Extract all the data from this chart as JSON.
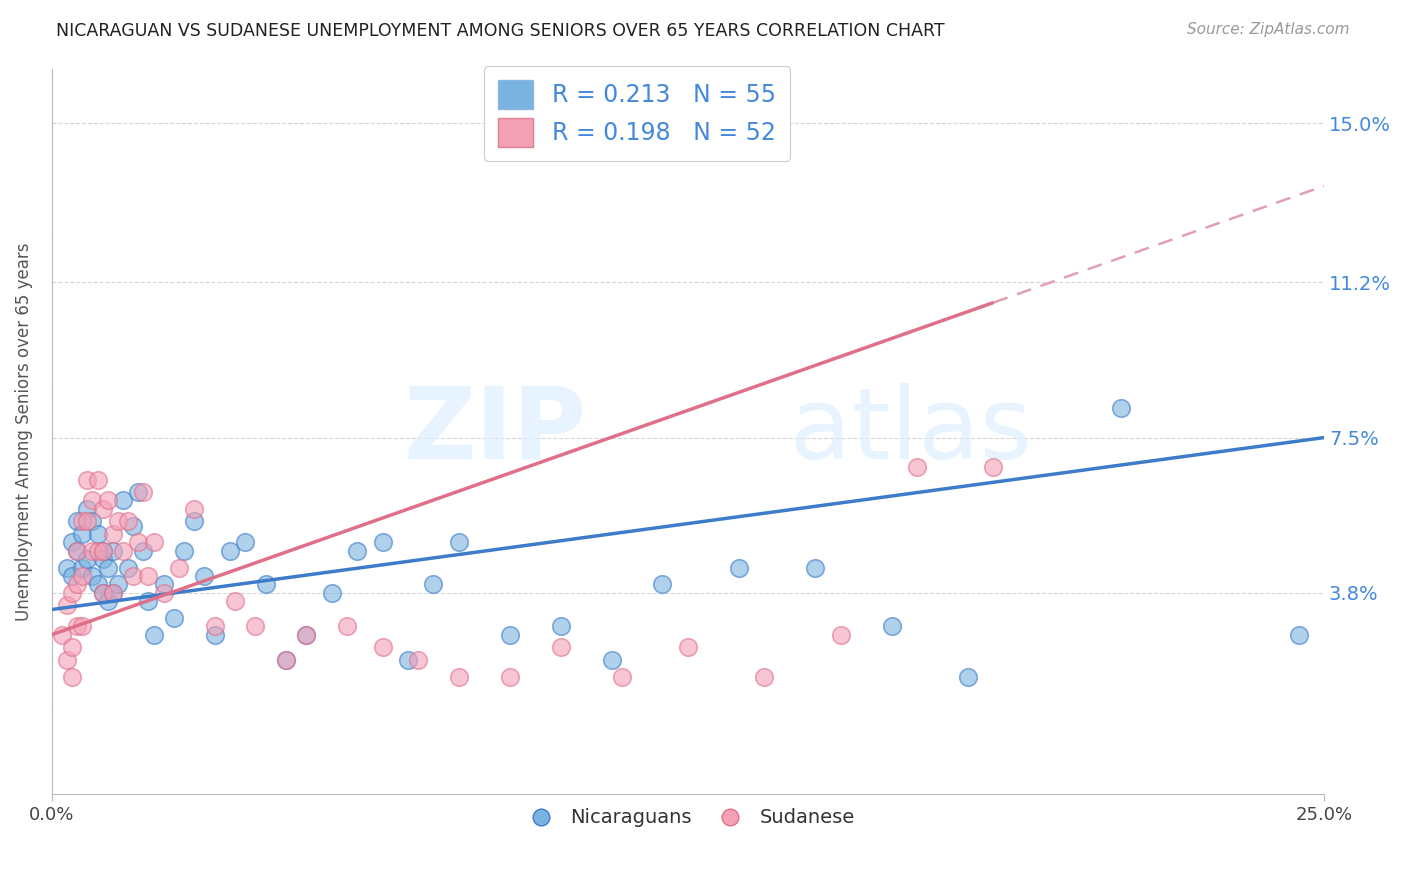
{
  "title": "NICARAGUAN VS SUDANESE UNEMPLOYMENT AMONG SENIORS OVER 65 YEARS CORRELATION CHART",
  "source": "Source: ZipAtlas.com",
  "ylabel": "Unemployment Among Seniors over 65 years",
  "xlim": [
    0.0,
    0.25
  ],
  "ylim": [
    -0.01,
    0.163
  ],
  "ytick_labels": [
    "3.8%",
    "7.5%",
    "11.2%",
    "15.0%"
  ],
  "ytick_values": [
    0.038,
    0.075,
    0.112,
    0.15
  ],
  "xtick_labels": [
    "0.0%",
    "25.0%"
  ],
  "xtick_values": [
    0.0,
    0.25
  ],
  "watermark_zip": "ZIP",
  "watermark_atlas": "atlas",
  "blue_color": "#7ab3e0",
  "pink_color": "#f4a0b5",
  "blue_line_color": "#3d7cc9",
  "pink_line_color": "#e0708a",
  "pink_dash_color": "#e0a0b0",
  "legend_label_blue": "Nicaraguans",
  "legend_label_pink": "Sudanese",
  "legend_blue_R": "0.213",
  "legend_blue_N": "55",
  "legend_pink_R": "0.198",
  "legend_pink_N": "52",
  "grid_color": "#cccccc",
  "blue_line_x": [
    0.0,
    0.25
  ],
  "blue_line_y": [
    0.034,
    0.075
  ],
  "pink_line_x": [
    0.0,
    0.25
  ],
  "pink_line_y": [
    0.028,
    0.135
  ],
  "blue_points_x": [
    0.003,
    0.004,
    0.004,
    0.005,
    0.005,
    0.006,
    0.006,
    0.007,
    0.007,
    0.008,
    0.008,
    0.009,
    0.009,
    0.01,
    0.01,
    0.01,
    0.011,
    0.011,
    0.012,
    0.012,
    0.013,
    0.014,
    0.015,
    0.016,
    0.017,
    0.018,
    0.019,
    0.02,
    0.022,
    0.024,
    0.026,
    0.028,
    0.03,
    0.032,
    0.035,
    0.038,
    0.042,
    0.046,
    0.05,
    0.055,
    0.06,
    0.065,
    0.07,
    0.075,
    0.08,
    0.09,
    0.1,
    0.11,
    0.12,
    0.135,
    0.15,
    0.165,
    0.18,
    0.21,
    0.245
  ],
  "blue_points_y": [
    0.044,
    0.05,
    0.042,
    0.055,
    0.048,
    0.052,
    0.044,
    0.058,
    0.046,
    0.055,
    0.042,
    0.052,
    0.04,
    0.048,
    0.038,
    0.046,
    0.044,
    0.036,
    0.048,
    0.038,
    0.04,
    0.06,
    0.044,
    0.054,
    0.062,
    0.048,
    0.036,
    0.028,
    0.04,
    0.032,
    0.048,
    0.055,
    0.042,
    0.028,
    0.048,
    0.05,
    0.04,
    0.022,
    0.028,
    0.038,
    0.048,
    0.05,
    0.022,
    0.04,
    0.05,
    0.028,
    0.03,
    0.022,
    0.04,
    0.044,
    0.044,
    0.03,
    0.018,
    0.082,
    0.028
  ],
  "pink_points_x": [
    0.002,
    0.003,
    0.003,
    0.004,
    0.004,
    0.004,
    0.005,
    0.005,
    0.005,
    0.006,
    0.006,
    0.006,
    0.007,
    0.007,
    0.008,
    0.008,
    0.009,
    0.009,
    0.01,
    0.01,
    0.01,
    0.011,
    0.012,
    0.012,
    0.013,
    0.014,
    0.015,
    0.016,
    0.017,
    0.018,
    0.019,
    0.02,
    0.022,
    0.025,
    0.028,
    0.032,
    0.036,
    0.04,
    0.046,
    0.05,
    0.058,
    0.065,
    0.072,
    0.08,
    0.09,
    0.1,
    0.112,
    0.125,
    0.14,
    0.155,
    0.17,
    0.185
  ],
  "pink_points_y": [
    0.028,
    0.035,
    0.022,
    0.038,
    0.025,
    0.018,
    0.048,
    0.04,
    0.03,
    0.055,
    0.042,
    0.03,
    0.065,
    0.055,
    0.06,
    0.048,
    0.065,
    0.048,
    0.058,
    0.048,
    0.038,
    0.06,
    0.052,
    0.038,
    0.055,
    0.048,
    0.055,
    0.042,
    0.05,
    0.062,
    0.042,
    0.05,
    0.038,
    0.044,
    0.058,
    0.03,
    0.036,
    0.03,
    0.022,
    0.028,
    0.03,
    0.025,
    0.022,
    0.018,
    0.018,
    0.025,
    0.018,
    0.025,
    0.018,
    0.028,
    0.068,
    0.068
  ]
}
